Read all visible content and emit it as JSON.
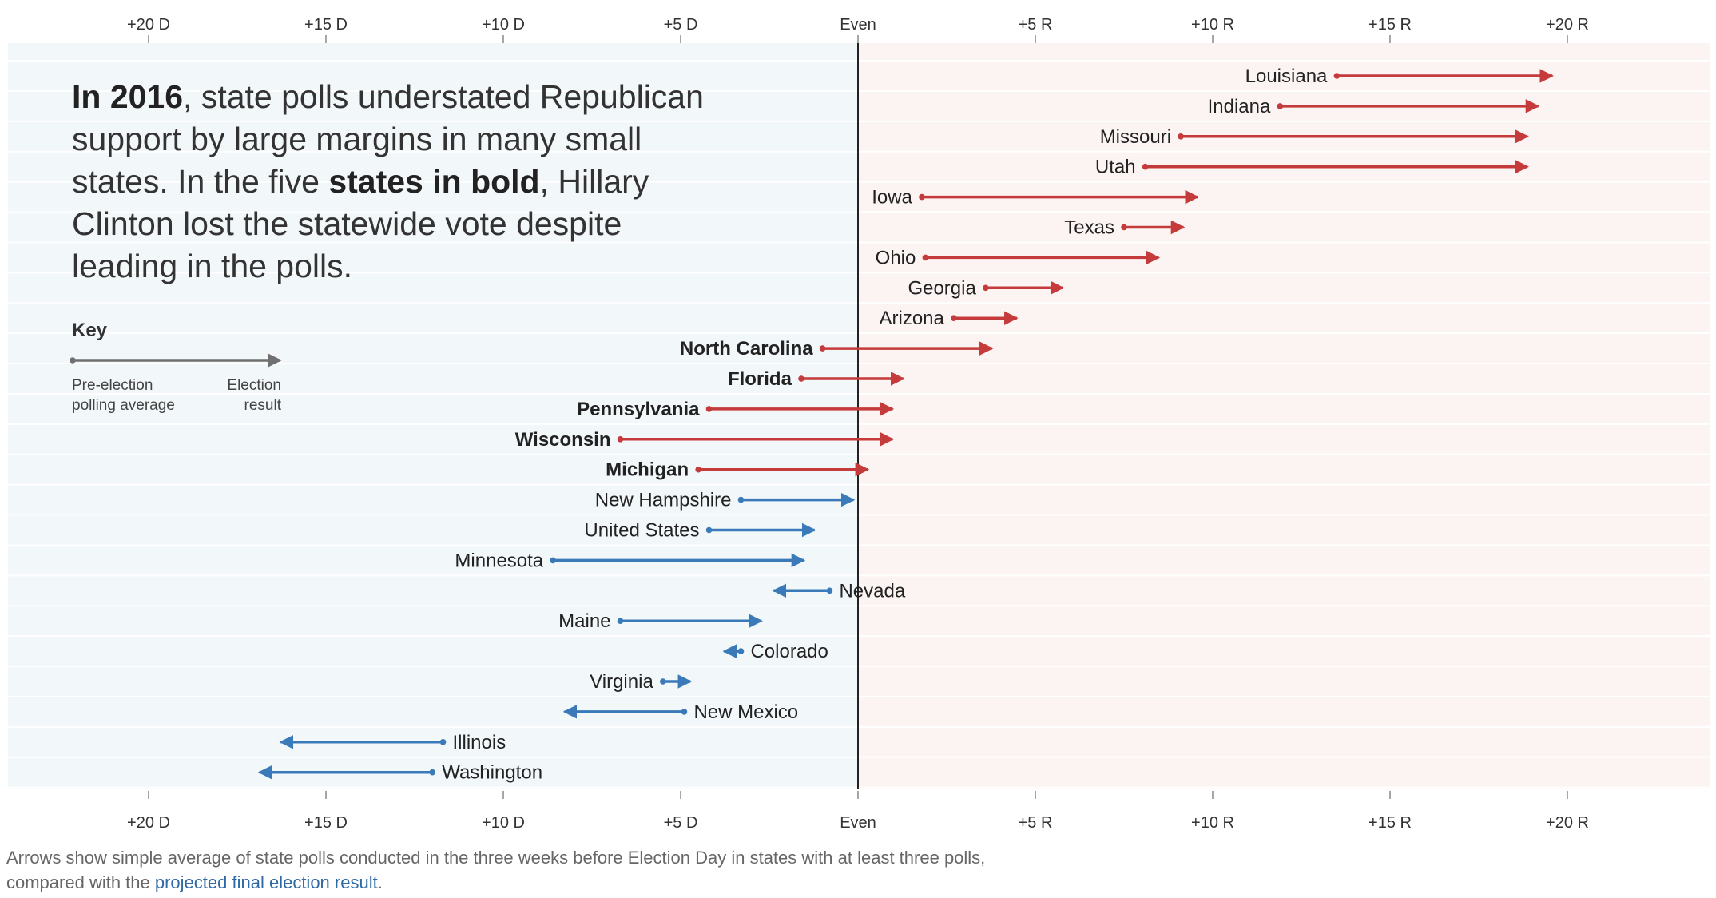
{
  "intro": {
    "part1": "In 2016",
    "part2": ", state polls understated Republican support by large margins in many small states. In the five ",
    "part3": "states in bold",
    "part4": ", Hillary Clinton lost the statewide vote despite leading in the polls."
  },
  "key": {
    "title": "Key",
    "left_label": "Pre-election\npolling average",
    "right_label": "Election\nresult"
  },
  "note": {
    "text": "Arrows show simple average of state polls conducted in the three weeks before Election Day in states with at least three polls, compared with the ",
    "link": "projected final election result",
    "end": "."
  },
  "colors": {
    "dem_arrow": "#3a7ab8",
    "rep_arrow": "#c53a3a",
    "dem_bg": "#f2f7fa",
    "rep_bg": "#fcf4f2",
    "key_arrow": "#707070",
    "zero_line": "#222222"
  },
  "chart_data": {
    "type": "arrow",
    "xlim": [
      -24,
      24
    ],
    "ticks": [
      {
        "value": -20,
        "label": "+20 D"
      },
      {
        "value": -15,
        "label": "+15 D"
      },
      {
        "value": -10,
        "label": "+10 D"
      },
      {
        "value": -5,
        "label": "+5 D"
      },
      {
        "value": 0,
        "label": "Even"
      },
      {
        "value": 5,
        "label": "+5 R"
      },
      {
        "value": 10,
        "label": "+10 R"
      },
      {
        "value": 15,
        "label": "+15 R"
      },
      {
        "value": 20,
        "label": "+20 R"
      }
    ],
    "series": [
      {
        "name": "Louisiana",
        "poll": 13.5,
        "result": 19.6,
        "bold": false
      },
      {
        "name": "Indiana",
        "poll": 11.9,
        "result": 19.2,
        "bold": false
      },
      {
        "name": "Missouri",
        "poll": 9.1,
        "result": 18.9,
        "bold": false
      },
      {
        "name": "Utah",
        "poll": 8.1,
        "result": 18.9,
        "bold": false
      },
      {
        "name": "Iowa",
        "poll": 1.8,
        "result": 9.6,
        "bold": false
      },
      {
        "name": "Texas",
        "poll": 7.5,
        "result": 9.2,
        "bold": false
      },
      {
        "name": "Ohio",
        "poll": 1.9,
        "result": 8.5,
        "bold": false
      },
      {
        "name": "Georgia",
        "poll": 3.6,
        "result": 5.8,
        "bold": false
      },
      {
        "name": "Arizona",
        "poll": 2.7,
        "result": 4.5,
        "bold": false
      },
      {
        "name": "North Carolina",
        "poll": -1.0,
        "result": 3.8,
        "bold": true
      },
      {
        "name": "Florida",
        "poll": -1.6,
        "result": 1.3,
        "bold": true
      },
      {
        "name": "Pennsylvania",
        "poll": -4.2,
        "result": 1.0,
        "bold": true
      },
      {
        "name": "Wisconsin",
        "poll": -6.7,
        "result": 1.0,
        "bold": true
      },
      {
        "name": "Michigan",
        "poll": -4.5,
        "result": 0.3,
        "bold": true
      },
      {
        "name": "New Hampshire",
        "poll": -3.3,
        "result": -0.1,
        "bold": false
      },
      {
        "name": "United States",
        "poll": -4.2,
        "result": -1.2,
        "bold": false
      },
      {
        "name": "Minnesota",
        "poll": -8.6,
        "result": -1.5,
        "bold": false
      },
      {
        "name": "Nevada",
        "poll": -0.8,
        "result": -2.4,
        "bold": false
      },
      {
        "name": "Maine",
        "poll": -6.7,
        "result": -2.7,
        "bold": false
      },
      {
        "name": "Colorado",
        "poll": -3.3,
        "result": -3.8,
        "bold": false
      },
      {
        "name": "Virginia",
        "poll": -5.5,
        "result": -4.7,
        "bold": false
      },
      {
        "name": "New Mexico",
        "poll": -4.9,
        "result": -8.3,
        "bold": false
      },
      {
        "name": "Illinois",
        "poll": -11.7,
        "result": -16.3,
        "bold": false
      },
      {
        "name": "Washington",
        "poll": -12.0,
        "result": -16.9,
        "bold": false
      }
    ]
  }
}
